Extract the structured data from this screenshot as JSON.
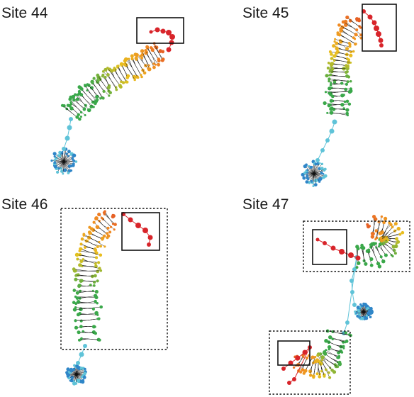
{
  "panels": [
    {
      "id": "site-44",
      "label": "Site 44"
    },
    {
      "id": "site-45",
      "label": "Site 45"
    },
    {
      "id": "site-46",
      "label": "Site 46"
    },
    {
      "id": "site-47",
      "label": "Site 47"
    }
  ],
  "colors": {
    "blue": "#2f86c8",
    "cyan": "#5fc3d8",
    "green": "#3aa84a",
    "yellow": "#e8c21e",
    "orange": "#f08a22",
    "red": "#d8242a",
    "spokes": "#111111",
    "box": "#111111"
  }
}
